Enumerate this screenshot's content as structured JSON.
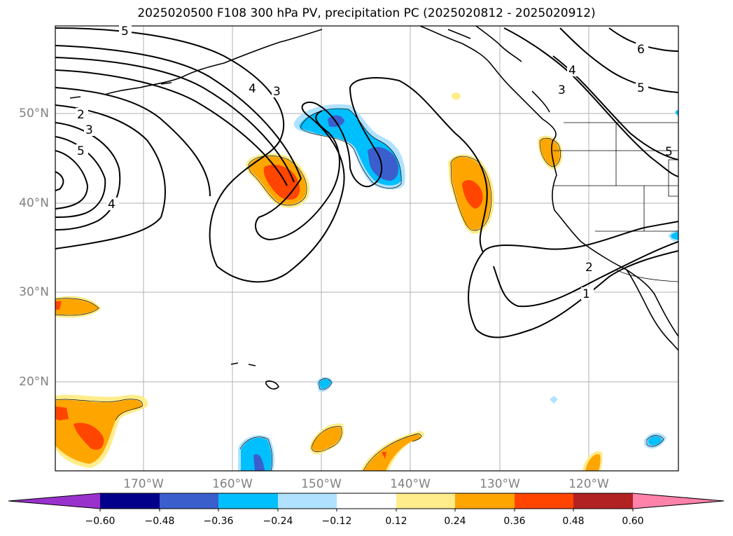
{
  "title": "2025020500 F108 300 hPa PV, precipitation PC (2025020812 - 2025020912)",
  "lat_labels": [
    "50°N",
    "40°N",
    "30°N",
    "20°N"
  ],
  "lon_labels": [
    "170°W",
    "160°W",
    "150°W",
    "140°W",
    "130°W",
    "120°W"
  ],
  "contour_labels": [
    "5",
    "2",
    "3",
    "5",
    "4",
    "4",
    "3",
    "6",
    "4",
    "3",
    "5",
    "5",
    "2",
    "1"
  ],
  "colorbar": {
    "ticks": [
      "−0.60",
      "−0.48",
      "−0.36",
      "−0.24",
      "−0.12",
      "0.12",
      "0.24",
      "0.36",
      "0.48",
      "0.60"
    ],
    "colors": [
      "#9932cc",
      "#00008b",
      "#3a5fcd",
      "#00bfff",
      "#b0e2ff",
      "#ffffff",
      "#ffec8b",
      "#ffa500",
      "#ff4500",
      "#b22222",
      "#ff82ab"
    ]
  }
}
